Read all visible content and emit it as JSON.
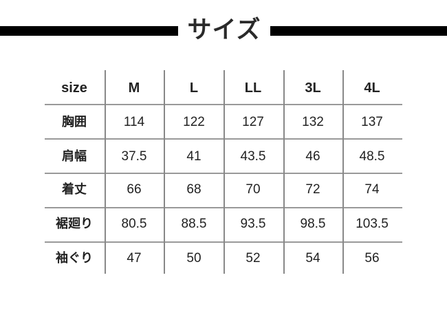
{
  "title": "サイズ",
  "table": {
    "header": [
      "size",
      "M",
      "L",
      "LL",
      "3L",
      "4L"
    ],
    "rows": [
      {
        "label": "胸囲",
        "values": [
          "114",
          "122",
          "127",
          "132",
          "137"
        ]
      },
      {
        "label": "肩幅",
        "values": [
          "37.5",
          "41",
          "43.5",
          "46",
          "48.5"
        ]
      },
      {
        "label": "着丈",
        "values": [
          "66",
          "68",
          "70",
          "72",
          "74"
        ]
      },
      {
        "label": "裾廻り",
        "values": [
          "80.5",
          "88.5",
          "93.5",
          "98.5",
          "103.5"
        ]
      },
      {
        "label": "袖ぐり",
        "values": [
          "47",
          "50",
          "52",
          "54",
          "56"
        ]
      }
    ]
  }
}
